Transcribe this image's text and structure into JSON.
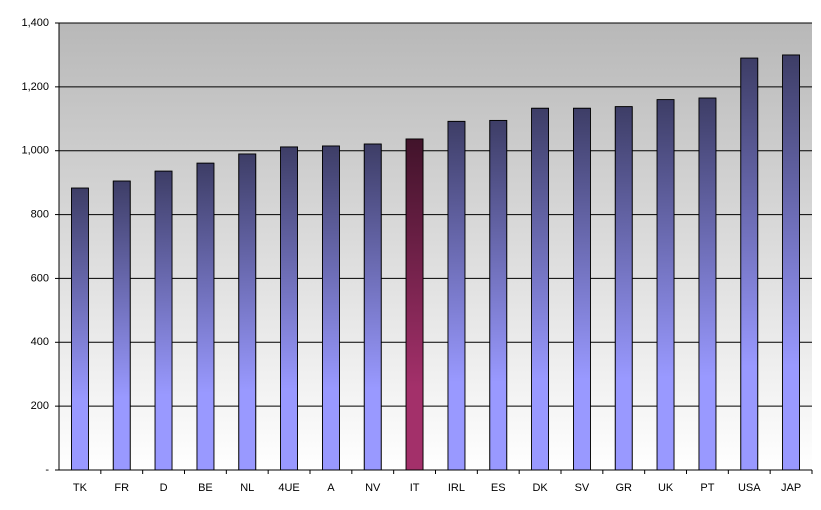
{
  "chart_data": {
    "type": "bar",
    "categories": [
      "TK",
      "FR",
      "D",
      "BE",
      "NL",
      "4UE",
      "A",
      "NV",
      "IT",
      "IRL",
      "ES",
      "DK",
      "SV",
      "GR",
      "UK",
      "PT",
      "USA",
      "JAP"
    ],
    "values": [
      883,
      905,
      936,
      961,
      990,
      1012,
      1015,
      1021,
      1037,
      1092,
      1095,
      1133,
      1133,
      1138,
      1160,
      1165,
      1290,
      1300
    ],
    "colors": [
      "#9999ff",
      "#9999ff",
      "#9999ff",
      "#9999ff",
      "#9999ff",
      "#9999ff",
      "#9999ff",
      "#9999ff",
      "#a3306a",
      "#9999ff",
      "#9999ff",
      "#9999ff",
      "#9999ff",
      "#9999ff",
      "#9999ff",
      "#9999ff",
      "#9999ff",
      "#9999ff"
    ],
    "ylim": [
      0,
      1400
    ],
    "yticks": [
      {
        "value": 0,
        "label": "-"
      },
      200,
      400,
      600,
      800,
      {
        "value": 1000,
        "label": "1,000"
      },
      {
        "value": 1200,
        "label": "1,200"
      },
      {
        "value": 1400,
        "label": "1,400"
      }
    ],
    "grid": true
  }
}
